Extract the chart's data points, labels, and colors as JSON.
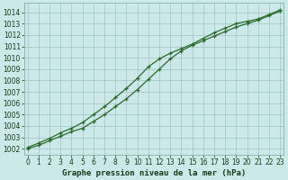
{
  "line1_x": [
    0,
    1,
    2,
    3,
    4,
    5,
    6,
    7,
    8,
    9,
    10,
    11,
    12,
    13,
    14,
    15,
    16,
    17,
    18,
    19,
    20,
    21,
    22,
    23
  ],
  "line1_y": [
    1002.0,
    1002.3,
    1002.7,
    1003.1,
    1003.5,
    1003.8,
    1004.4,
    1005.0,
    1005.7,
    1006.4,
    1007.2,
    1008.1,
    1009.0,
    1009.9,
    1010.6,
    1011.1,
    1011.5,
    1011.9,
    1012.3,
    1012.7,
    1013.0,
    1013.3,
    1013.7,
    1014.1
  ],
  "line2_x": [
    0,
    1,
    2,
    3,
    4,
    5,
    6,
    7,
    8,
    9,
    10,
    11,
    12,
    13,
    14,
    15,
    16,
    17,
    18,
    19,
    20,
    21,
    22,
    23
  ],
  "line2_y": [
    1002.1,
    1002.5,
    1002.9,
    1003.4,
    1003.8,
    1004.3,
    1005.0,
    1005.7,
    1006.5,
    1007.3,
    1008.2,
    1009.2,
    1009.9,
    1010.4,
    1010.8,
    1011.2,
    1011.7,
    1012.2,
    1012.6,
    1013.0,
    1013.2,
    1013.4,
    1013.8,
    1014.2
  ],
  "line_color": "#2d6a2d",
  "bg_color": "#cce8e8",
  "grid_color": "#a0c4c4",
  "xlabel": "Graphe pression niveau de la mer (hPa)",
  "ylim_min": 1001.5,
  "ylim_max": 1014.8,
  "xlim_min": -0.3,
  "xlim_max": 23.3,
  "yticks": [
    1002,
    1003,
    1004,
    1005,
    1006,
    1007,
    1008,
    1009,
    1010,
    1011,
    1012,
    1013,
    1014
  ],
  "xticks": [
    0,
    1,
    2,
    3,
    4,
    5,
    6,
    7,
    8,
    9,
    10,
    11,
    12,
    13,
    14,
    15,
    16,
    17,
    18,
    19,
    20,
    21,
    22,
    23
  ],
  "tick_fontsize": 5.5,
  "xlabel_fontsize": 6.5
}
